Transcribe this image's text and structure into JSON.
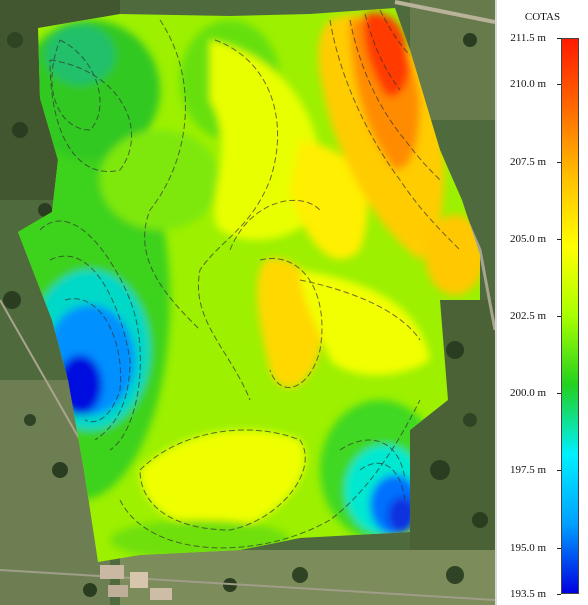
{
  "legend": {
    "title": "COTAS",
    "ticks": [
      "211.5 m",
      "210.0 m",
      "207.5 m",
      "205.0 m",
      "202.5 m",
      "200.0 m",
      "197.5 m",
      "195.0 m",
      "193.5 m"
    ],
    "tick_values": [
      211.5,
      210.0,
      207.5,
      205.0,
      202.5,
      200.0,
      197.5,
      195.0,
      193.5
    ],
    "min": 193.5,
    "max": 211.5,
    "colors": [
      "#0000e0",
      "#00a0ff",
      "#00f0ff",
      "#22d020",
      "#a8ff00",
      "#ffff00",
      "#ffc000",
      "#ff6a00",
      "#ff1a00"
    ]
  },
  "map": {
    "background": "satellite-imagery",
    "overlay": "elevation-contour-map"
  }
}
